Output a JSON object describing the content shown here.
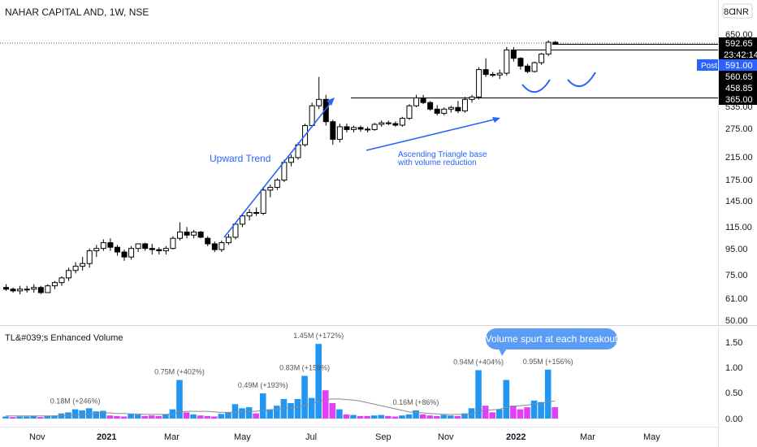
{
  "header": {
    "symbol_title": "NAHAR CAPITAL AND, 1W, NSE",
    "currency": "INR",
    "currency_code": "8C"
  },
  "price_axis": {
    "ticks": [
      "650.00",
      "535.00",
      "275.00",
      "215.00",
      "175.00",
      "145.00",
      "115.00",
      "95.00",
      "75.00",
      "61.00",
      "50.00"
    ],
    "tags": {
      "last": "592.65",
      "countdown": "23:42:14",
      "post_label": "Post",
      "post_value": "591.00",
      "level1": "560.65",
      "level2": "458.85",
      "level3": "365.00"
    }
  },
  "volume_panel": {
    "title": "TL&#039;s Enhanced Volume",
    "ticks": [
      "1.50",
      "1.00",
      "0.50",
      "0.00"
    ],
    "labels": [
      "0.18M (+246%)",
      "0.75M (+402%)",
      "0.49M (+193%)",
      "0.83M (+159%)",
      "1.45M (+172%)",
      "0.16M (+86%)",
      "0.94M (+404%)",
      "0.95M (+156%)"
    ]
  },
  "time_axis": {
    "labels": [
      "Nov",
      "2021",
      "Mar",
      "May",
      "Jul",
      "Sep",
      "Nov",
      "2022",
      "Mar",
      "May"
    ]
  },
  "annotations": {
    "upward_trend": "Upward Trend",
    "triangle_line1": "Ascending Triangle base",
    "triangle_line2": "with volume reduction",
    "volume_callout": "Volume spurt at each breakout"
  },
  "chart_data": {
    "type": "candlestick",
    "timeframe": "1W",
    "y_scale": "log",
    "ylim": [
      50,
      700
    ],
    "x_range": [
      "2020-10",
      "2022-05"
    ],
    "candles": [
      {
        "o": 67,
        "h": 69,
        "l": 65,
        "c": 66
      },
      {
        "o": 66,
        "h": 67,
        "l": 64,
        "c": 65
      },
      {
        "o": 65,
        "h": 68,
        "l": 63,
        "c": 66
      },
      {
        "o": 66,
        "h": 68,
        "l": 64,
        "c": 66
      },
      {
        "o": 66,
        "h": 69,
        "l": 64,
        "c": 67
      },
      {
        "o": 67,
        "h": 68,
        "l": 63,
        "c": 64
      },
      {
        "o": 64,
        "h": 69,
        "l": 64,
        "c": 68
      },
      {
        "o": 68,
        "h": 71,
        "l": 66,
        "c": 70
      },
      {
        "o": 70,
        "h": 74,
        "l": 68,
        "c": 73
      },
      {
        "o": 73,
        "h": 80,
        "l": 71,
        "c": 78
      },
      {
        "o": 78,
        "h": 84,
        "l": 76,
        "c": 81
      },
      {
        "o": 81,
        "h": 88,
        "l": 78,
        "c": 83
      },
      {
        "o": 83,
        "h": 95,
        "l": 80,
        "c": 93
      },
      {
        "o": 93,
        "h": 98,
        "l": 88,
        "c": 95
      },
      {
        "o": 95,
        "h": 103,
        "l": 93,
        "c": 100
      },
      {
        "o": 100,
        "h": 104,
        "l": 93,
        "c": 96
      },
      {
        "o": 96,
        "h": 98,
        "l": 89,
        "c": 92
      },
      {
        "o": 92,
        "h": 94,
        "l": 85,
        "c": 88
      },
      {
        "o": 88,
        "h": 97,
        "l": 86,
        "c": 95
      },
      {
        "o": 95,
        "h": 99,
        "l": 92,
        "c": 99
      },
      {
        "o": 99,
        "h": 100,
        "l": 93,
        "c": 95
      },
      {
        "o": 95,
        "h": 99,
        "l": 90,
        "c": 94
      },
      {
        "o": 94,
        "h": 96,
        "l": 90,
        "c": 93
      },
      {
        "o": 93,
        "h": 97,
        "l": 90,
        "c": 95
      },
      {
        "o": 95,
        "h": 106,
        "l": 94,
        "c": 104
      },
      {
        "o": 104,
        "h": 120,
        "l": 102,
        "c": 110
      },
      {
        "o": 110,
        "h": 115,
        "l": 104,
        "c": 107
      },
      {
        "o": 107,
        "h": 112,
        "l": 104,
        "c": 110
      },
      {
        "o": 110,
        "h": 111,
        "l": 104,
        "c": 105
      },
      {
        "o": 104,
        "h": 106,
        "l": 97,
        "c": 99
      },
      {
        "o": 99,
        "h": 101,
        "l": 92,
        "c": 94
      },
      {
        "o": 94,
        "h": 102,
        "l": 92,
        "c": 100
      },
      {
        "o": 100,
        "h": 108,
        "l": 98,
        "c": 105
      },
      {
        "o": 105,
        "h": 120,
        "l": 103,
        "c": 118
      },
      {
        "o": 118,
        "h": 130,
        "l": 115,
        "c": 127
      },
      {
        "o": 127,
        "h": 135,
        "l": 122,
        "c": 131
      },
      {
        "o": 131,
        "h": 137,
        "l": 127,
        "c": 130
      },
      {
        "o": 130,
        "h": 165,
        "l": 128,
        "c": 160
      },
      {
        "o": 160,
        "h": 168,
        "l": 150,
        "c": 164
      },
      {
        "o": 164,
        "h": 178,
        "l": 160,
        "c": 175
      },
      {
        "o": 175,
        "h": 210,
        "l": 172,
        "c": 205
      },
      {
        "o": 205,
        "h": 220,
        "l": 198,
        "c": 214
      },
      {
        "o": 214,
        "h": 245,
        "l": 210,
        "c": 240
      },
      {
        "o": 240,
        "h": 290,
        "l": 236,
        "c": 285
      },
      {
        "o": 285,
        "h": 350,
        "l": 280,
        "c": 340
      },
      {
        "o": 340,
        "h": 440,
        "l": 330,
        "c": 360
      },
      {
        "o": 360,
        "h": 375,
        "l": 285,
        "c": 295
      },
      {
        "o": 295,
        "h": 300,
        "l": 240,
        "c": 252
      },
      {
        "o": 252,
        "h": 290,
        "l": 245,
        "c": 282
      },
      {
        "o": 282,
        "h": 290,
        "l": 268,
        "c": 275
      },
      {
        "o": 275,
        "h": 285,
        "l": 268,
        "c": 280
      },
      {
        "o": 280,
        "h": 285,
        "l": 270,
        "c": 276
      },
      {
        "o": 276,
        "h": 282,
        "l": 268,
        "c": 275
      },
      {
        "o": 275,
        "h": 292,
        "l": 272,
        "c": 288
      },
      {
        "o": 288,
        "h": 298,
        "l": 282,
        "c": 292
      },
      {
        "o": 292,
        "h": 298,
        "l": 286,
        "c": 290
      },
      {
        "o": 290,
        "h": 296,
        "l": 282,
        "c": 286
      },
      {
        "o": 286,
        "h": 308,
        "l": 282,
        "c": 304
      },
      {
        "o": 304,
        "h": 345,
        "l": 300,
        "c": 340
      },
      {
        "o": 340,
        "h": 375,
        "l": 336,
        "c": 365
      },
      {
        "o": 365,
        "h": 375,
        "l": 345,
        "c": 350
      },
      {
        "o": 350,
        "h": 355,
        "l": 325,
        "c": 330
      },
      {
        "o": 330,
        "h": 342,
        "l": 312,
        "c": 318
      },
      {
        "o": 318,
        "h": 335,
        "l": 312,
        "c": 330
      },
      {
        "o": 330,
        "h": 340,
        "l": 320,
        "c": 335
      },
      {
        "o": 335,
        "h": 355,
        "l": 318,
        "c": 325
      },
      {
        "o": 325,
        "h": 368,
        "l": 320,
        "c": 360
      },
      {
        "o": 360,
        "h": 375,
        "l": 350,
        "c": 368
      },
      {
        "o": 368,
        "h": 480,
        "l": 360,
        "c": 470
      },
      {
        "o": 470,
        "h": 520,
        "l": 440,
        "c": 450
      },
      {
        "o": 450,
        "h": 460,
        "l": 440,
        "c": 448
      },
      {
        "o": 448,
        "h": 470,
        "l": 432,
        "c": 455
      },
      {
        "o": 455,
        "h": 575,
        "l": 445,
        "c": 560
      },
      {
        "o": 560,
        "h": 575,
        "l": 505,
        "c": 520
      },
      {
        "o": 520,
        "h": 525,
        "l": 470,
        "c": 485
      },
      {
        "o": 485,
        "h": 495,
        "l": 455,
        "c": 462
      },
      {
        "o": 462,
        "h": 505,
        "l": 458,
        "c": 500
      },
      {
        "o": 500,
        "h": 545,
        "l": 490,
        "c": 540
      },
      {
        "o": 540,
        "h": 610,
        "l": 530,
        "c": 600
      },
      {
        "o": 600,
        "h": 608,
        "l": 588,
        "c": 593
      }
    ],
    "volume": [
      {
        "v": 0.04,
        "up": true
      },
      {
        "v": 0.03,
        "up": false
      },
      {
        "v": 0.04,
        "up": true
      },
      {
        "v": 0.04,
        "up": true
      },
      {
        "v": 0.05,
        "up": true
      },
      {
        "v": 0.03,
        "up": false
      },
      {
        "v": 0.05,
        "up": true
      },
      {
        "v": 0.06,
        "up": true
      },
      {
        "v": 0.1,
        "up": true
      },
      {
        "v": 0.12,
        "up": true
      },
      {
        "v": 0.18,
        "up": true
      },
      {
        "v": 0.16,
        "up": true
      },
      {
        "v": 0.2,
        "up": true
      },
      {
        "v": 0.14,
        "up": true
      },
      {
        "v": 0.15,
        "up": true
      },
      {
        "v": 0.06,
        "up": false
      },
      {
        "v": 0.05,
        "up": false
      },
      {
        "v": 0.04,
        "up": false
      },
      {
        "v": 0.09,
        "up": true
      },
      {
        "v": 0.08,
        "up": true
      },
      {
        "v": 0.05,
        "up": false
      },
      {
        "v": 0.06,
        "up": false
      },
      {
        "v": 0.05,
        "up": false
      },
      {
        "v": 0.08,
        "up": true
      },
      {
        "v": 0.18,
        "up": true
      },
      {
        "v": 0.75,
        "up": true
      },
      {
        "v": 0.12,
        "up": false
      },
      {
        "v": 0.08,
        "up": true
      },
      {
        "v": 0.06,
        "up": false
      },
      {
        "v": 0.05,
        "up": false
      },
      {
        "v": 0.04,
        "up": false
      },
      {
        "v": 0.09,
        "up": true
      },
      {
        "v": 0.12,
        "up": true
      },
      {
        "v": 0.28,
        "up": true
      },
      {
        "v": 0.2,
        "up": true
      },
      {
        "v": 0.22,
        "up": true
      },
      {
        "v": 0.1,
        "up": false
      },
      {
        "v": 0.49,
        "up": true
      },
      {
        "v": 0.18,
        "up": true
      },
      {
        "v": 0.25,
        "up": true
      },
      {
        "v": 0.38,
        "up": true
      },
      {
        "v": 0.3,
        "up": true
      },
      {
        "v": 0.38,
        "up": true
      },
      {
        "v": 0.83,
        "up": true
      },
      {
        "v": 0.4,
        "up": true
      },
      {
        "v": 1.45,
        "up": true
      },
      {
        "v": 0.55,
        "up": false
      },
      {
        "v": 0.3,
        "up": false
      },
      {
        "v": 0.18,
        "up": true
      },
      {
        "v": 0.08,
        "up": false
      },
      {
        "v": 0.07,
        "up": true
      },
      {
        "v": 0.05,
        "up": false
      },
      {
        "v": 0.05,
        "up": false
      },
      {
        "v": 0.06,
        "up": true
      },
      {
        "v": 0.07,
        "up": true
      },
      {
        "v": 0.05,
        "up": false
      },
      {
        "v": 0.04,
        "up": false
      },
      {
        "v": 0.06,
        "up": true
      },
      {
        "v": 0.08,
        "up": true
      },
      {
        "v": 0.16,
        "up": true
      },
      {
        "v": 0.08,
        "up": false
      },
      {
        "v": 0.06,
        "up": false
      },
      {
        "v": 0.05,
        "up": false
      },
      {
        "v": 0.07,
        "up": true
      },
      {
        "v": 0.06,
        "up": true
      },
      {
        "v": 0.05,
        "up": false
      },
      {
        "v": 0.1,
        "up": true
      },
      {
        "v": 0.2,
        "up": true
      },
      {
        "v": 0.94,
        "up": true
      },
      {
        "v": 0.25,
        "up": false
      },
      {
        "v": 0.12,
        "up": false
      },
      {
        "v": 0.18,
        "up": true
      },
      {
        "v": 0.75,
        "up": true
      },
      {
        "v": 0.25,
        "up": false
      },
      {
        "v": 0.18,
        "up": false
      },
      {
        "v": 0.22,
        "up": false
      },
      {
        "v": 0.35,
        "up": true
      },
      {
        "v": 0.32,
        "up": true
      },
      {
        "v": 0.95,
        "up": true
      },
      {
        "v": 0.22,
        "up": false
      }
    ],
    "volume_ma": [
      0.05,
      0.05,
      0.05,
      0.05,
      0.05,
      0.05,
      0.05,
      0.05,
      0.05,
      0.06,
      0.07,
      0.08,
      0.09,
      0.1,
      0.11,
      0.11,
      0.1,
      0.1,
      0.09,
      0.09,
      0.08,
      0.08,
      0.08,
      0.08,
      0.09,
      0.13,
      0.14,
      0.14,
      0.14,
      0.14,
      0.13,
      0.12,
      0.12,
      0.12,
      0.13,
      0.14,
      0.14,
      0.16,
      0.17,
      0.18,
      0.2,
      0.21,
      0.23,
      0.26,
      0.28,
      0.33,
      0.37,
      0.38,
      0.38,
      0.37,
      0.36,
      0.34,
      0.31,
      0.28,
      0.25,
      0.22,
      0.19,
      0.16,
      0.13,
      0.12,
      0.11,
      0.1,
      0.09,
      0.08,
      0.08,
      0.08,
      0.08,
      0.09,
      0.14,
      0.16,
      0.17,
      0.18,
      0.22,
      0.24,
      0.25,
      0.26,
      0.28,
      0.29,
      0.33,
      0.34
    ],
    "horizontal_levels": [
      592.65,
      560.65,
      365.0
    ],
    "volume_ylim": [
      0,
      1.6
    ],
    "colors": {
      "up_candle": "#ffffff",
      "down_candle": "#000000",
      "volume_up": "#2196f3",
      "volume_down": "#e040fb",
      "volume_ma": "#808080",
      "annotation_blue": "#2962ff"
    }
  }
}
